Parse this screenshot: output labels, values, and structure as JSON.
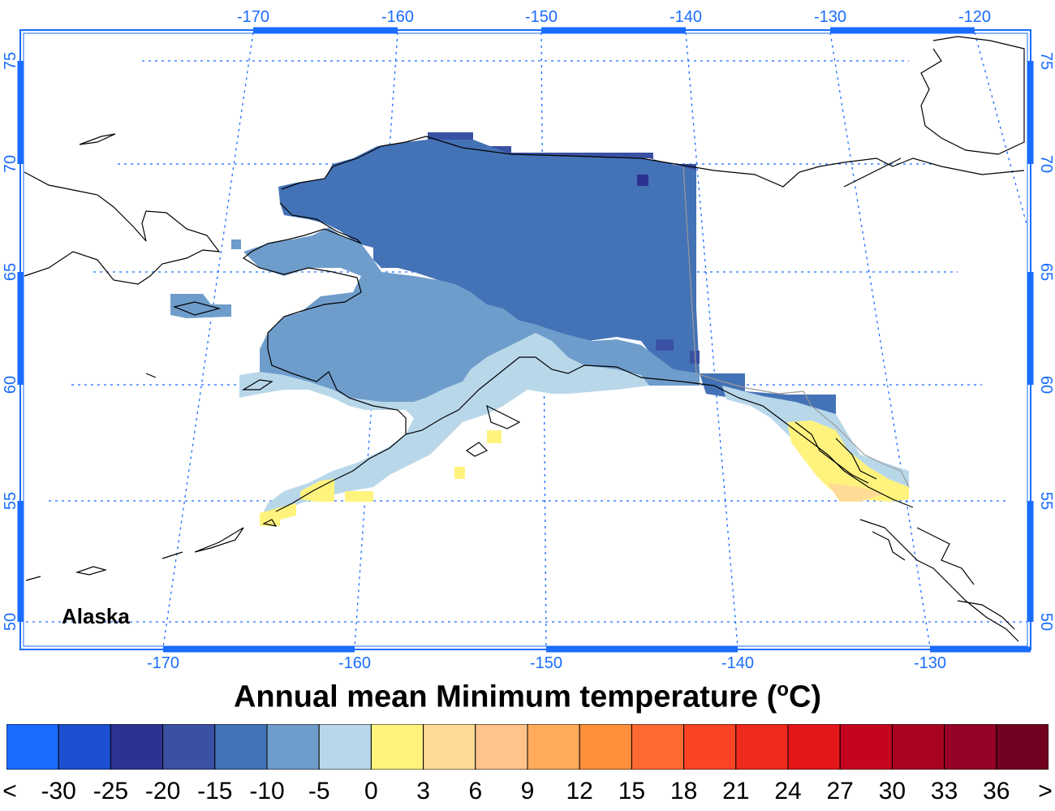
{
  "title": {
    "main": "Annual mean Minimum temperature (",
    "unit_sup": "o",
    "unit_tail": "C)"
  },
  "region_label": "Alaska",
  "axes": {
    "lon_top": [
      "-170",
      "-160",
      "-150",
      "-140",
      "-130",
      "-120"
    ],
    "lon_bottom": [
      "-170",
      "-160",
      "-150",
      "-140",
      "-130"
    ],
    "lat_left": [
      "75",
      "70",
      "65",
      "60",
      "55",
      "50"
    ],
    "lat_right": [
      "75",
      "70",
      "65",
      "60",
      "55",
      "50"
    ]
  },
  "legend": {
    "colors": [
      "#1a6cff",
      "#1c4fd1",
      "#2d3292",
      "#3a51a3",
      "#4472b6",
      "#6f9dcb",
      "#b8d8ea",
      "#fff37e",
      "#ffdb96",
      "#ffc48c",
      "#ffab59",
      "#ff8f3a",
      "#ff6a33",
      "#fb4424",
      "#f02a1c",
      "#e51619",
      "#c5051f",
      "#aa0321",
      "#960225",
      "#720021"
    ],
    "labels": [
      "<",
      "-30",
      "-25",
      "-20",
      "-15",
      "-10",
      "-5",
      "0",
      "3",
      "6",
      "9",
      "12",
      "15",
      "18",
      "21",
      "24",
      "27",
      "30",
      "33",
      "36",
      ">"
    ]
  },
  "colors": {
    "axis": "#1a6cff",
    "land_border": "#000000"
  }
}
